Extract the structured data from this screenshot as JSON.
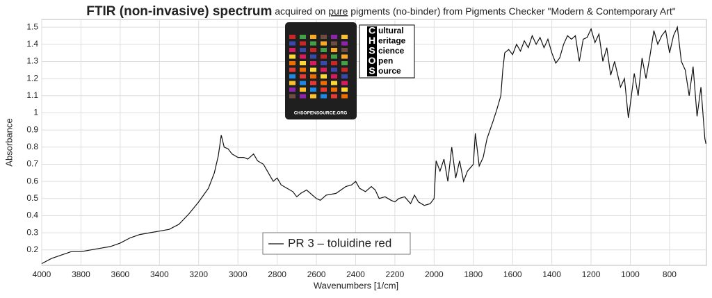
{
  "chart_data": {
    "type": "line",
    "title_parts": [
      {
        "text": "FTIR (non-invasive) spectrum",
        "style": "bold"
      },
      {
        "text": " acquired on ",
        "style": "normal"
      },
      {
        "text": "pure",
        "style": "underline"
      },
      {
        "text": " pigments (no-binder) from Pigments Checker \"Modern & Contemporary Art\"",
        "style": "normal"
      }
    ],
    "x_label": "Wavenumbers [1/cm]",
    "y_label": "Absorbance",
    "xlim": [
      4000,
      612
    ],
    "ylim": [
      0.11,
      1.545
    ],
    "xticks": [
      4000,
      3800,
      3600,
      3400,
      3200,
      3000,
      2800,
      2600,
      2400,
      2200,
      2000,
      1800,
      1600,
      1400,
      1200,
      1000,
      800
    ],
    "yticks": [
      0.2,
      0.3,
      0.4,
      0.5,
      0.6,
      0.7,
      0.8,
      0.9,
      1,
      1.1,
      1.2,
      1.3,
      1.4,
      1.5
    ],
    "grid": true,
    "logo": [
      {
        "initial": "C",
        "rest": "ultural"
      },
      {
        "initial": "H",
        "rest": "eritage"
      },
      {
        "initial": "S",
        "rest": "cience"
      },
      {
        "initial": "O",
        "rest": "pen"
      },
      {
        "initial": "S",
        "rest": "ource"
      }
    ],
    "card_caption": "CHSOPENSOURCE.ORG",
    "series": [
      {
        "name": "PR 3 – toluidine red",
        "color": "#111111",
        "x": [
          4000,
          3950,
          3900,
          3850,
          3800,
          3750,
          3700,
          3650,
          3600,
          3550,
          3500,
          3450,
          3400,
          3350,
          3300,
          3250,
          3200,
          3150,
          3120,
          3100,
          3085,
          3070,
          3050,
          3030,
          3000,
          2970,
          2950,
          2920,
          2900,
          2870,
          2850,
          2820,
          2800,
          2780,
          2750,
          2720,
          2700,
          2680,
          2650,
          2620,
          2600,
          2580,
          2550,
          2500,
          2450,
          2420,
          2400,
          2380,
          2350,
          2320,
          2300,
          2280,
          2250,
          2220,
          2200,
          2180,
          2150,
          2120,
          2100,
          2080,
          2050,
          2020,
          2000,
          1990,
          1970,
          1950,
          1930,
          1910,
          1890,
          1870,
          1850,
          1830,
          1800,
          1790,
          1770,
          1750,
          1730,
          1700,
          1680,
          1660,
          1650,
          1640,
          1620,
          1600,
          1580,
          1560,
          1540,
          1520,
          1500,
          1480,
          1460,
          1440,
          1420,
          1400,
          1380,
          1360,
          1340,
          1320,
          1300,
          1280,
          1260,
          1240,
          1220,
          1200,
          1180,
          1160,
          1140,
          1120,
          1100,
          1080,
          1050,
          1030,
          1010,
          1000,
          980,
          960,
          940,
          920,
          900,
          880,
          860,
          840,
          820,
          800,
          780,
          760,
          740,
          720,
          700,
          680,
          660,
          640,
          620,
          615
        ],
        "values": [
          0.12,
          0.15,
          0.17,
          0.19,
          0.19,
          0.2,
          0.21,
          0.22,
          0.24,
          0.27,
          0.29,
          0.3,
          0.31,
          0.32,
          0.35,
          0.41,
          0.48,
          0.56,
          0.65,
          0.75,
          0.87,
          0.8,
          0.79,
          0.76,
          0.74,
          0.74,
          0.73,
          0.76,
          0.72,
          0.7,
          0.66,
          0.6,
          0.62,
          0.58,
          0.56,
          0.54,
          0.51,
          0.53,
          0.55,
          0.52,
          0.5,
          0.49,
          0.52,
          0.53,
          0.57,
          0.58,
          0.6,
          0.56,
          0.54,
          0.57,
          0.55,
          0.5,
          0.51,
          0.49,
          0.48,
          0.5,
          0.51,
          0.47,
          0.52,
          0.48,
          0.46,
          0.47,
          0.5,
          0.72,
          0.66,
          0.73,
          0.6,
          0.8,
          0.62,
          0.72,
          0.6,
          0.66,
          0.7,
          0.88,
          0.69,
          0.74,
          0.85,
          0.95,
          1.02,
          1.1,
          1.25,
          1.35,
          1.37,
          1.34,
          1.4,
          1.36,
          1.42,
          1.38,
          1.45,
          1.4,
          1.44,
          1.38,
          1.43,
          1.35,
          1.29,
          1.32,
          1.4,
          1.45,
          1.43,
          1.45,
          1.3,
          1.43,
          1.44,
          1.49,
          1.41,
          1.46,
          1.3,
          1.38,
          1.22,
          1.3,
          1.15,
          1.2,
          0.97,
          1.05,
          1.23,
          1.1,
          1.32,
          1.2,
          1.33,
          1.48,
          1.4,
          1.45,
          1.48,
          1.35,
          1.45,
          1.5,
          1.3,
          1.25,
          1.1,
          1.27,
          0.98,
          1.15,
          0.85,
          0.82
        ]
      }
    ]
  }
}
